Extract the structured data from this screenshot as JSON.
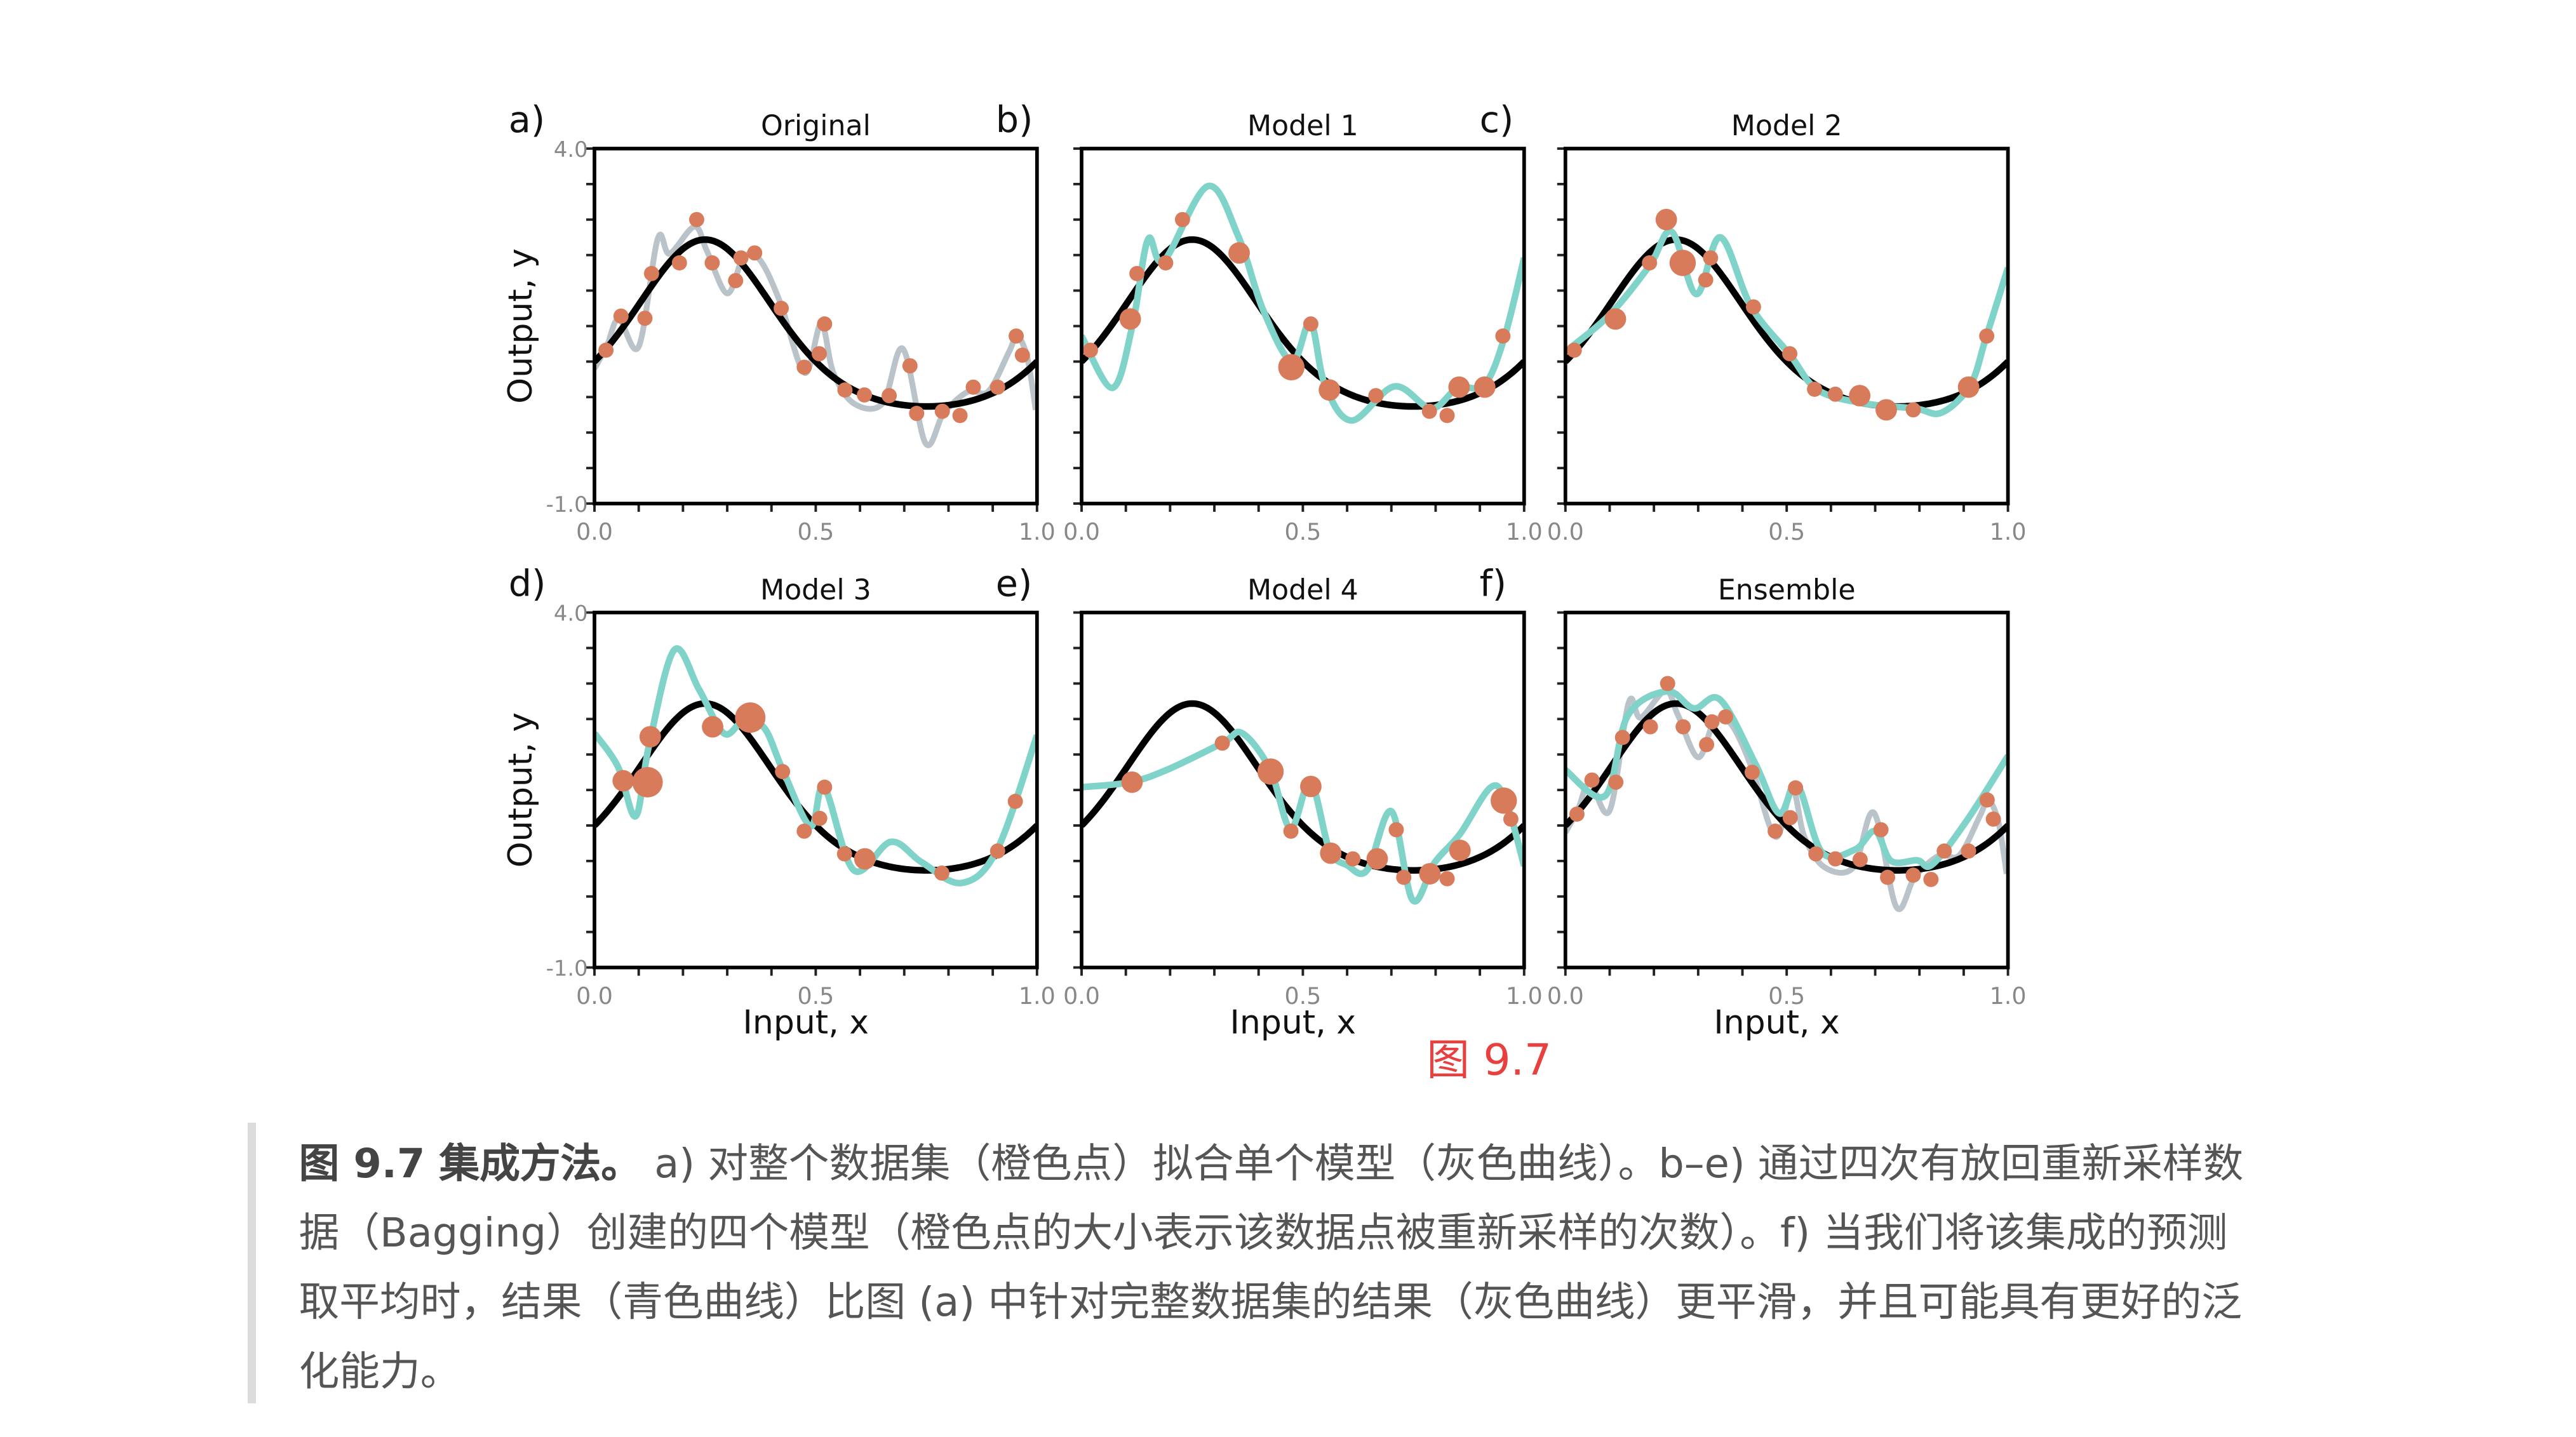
{
  "figure_label": "图 9.7",
  "caption": {
    "bold": "图 9.7 集成方法。",
    "lines": [
      " a) 对整个数据集（橙色点）拟合单个模型（灰色曲线）。b–e) 通过四次有放回重新采样数",
      "据（Bagging）创建的四个模型（橙色点的大小表示该数据点被重新采样的次数）。f) 当我们将该集成的预测",
      "取平均时，结果（青色曲线）比图 (a) 中针对完整数据集的结果（灰色曲线）更平滑，并且可能具有更好的泛",
      "化能力。"
    ]
  },
  "colors": {
    "truth": "#000000",
    "original_fit": "#b9c3c9",
    "model_fit": "#7fd3c8",
    "points": "#d77b5b",
    "axis_ticks": "#888888"
  },
  "chart_data": {
    "type": "scatter",
    "xlabel": "Input, x",
    "ylabel": "Output, y",
    "xlim": [
      0.0,
      1.0
    ],
    "ylim": [
      -1.0,
      4.0
    ],
    "xticks": [
      "0.0",
      "0.5",
      "1.0"
    ],
    "yticks": [
      "4.0",
      "-1.0"
    ],
    "true_function": "exp(sin(2πx))",
    "original_points": [
      [
        0.026,
        1.16
      ],
      [
        0.06,
        1.64
      ],
      [
        0.114,
        1.61
      ],
      [
        0.129,
        2.24
      ],
      [
        0.192,
        2.39
      ],
      [
        0.231,
        3.0
      ],
      [
        0.266,
        2.39
      ],
      [
        0.319,
        2.14
      ],
      [
        0.331,
        2.46
      ],
      [
        0.362,
        2.53
      ],
      [
        0.422,
        1.75
      ],
      [
        0.474,
        0.92
      ],
      [
        0.508,
        1.11
      ],
      [
        0.52,
        1.53
      ],
      [
        0.566,
        0.6
      ],
      [
        0.61,
        0.53
      ],
      [
        0.666,
        0.52
      ],
      [
        0.713,
        0.94
      ],
      [
        0.728,
        0.27
      ],
      [
        0.786,
        0.3
      ],
      [
        0.826,
        0.24
      ],
      [
        0.856,
        0.64
      ],
      [
        0.911,
        0.64
      ],
      [
        0.953,
        1.36
      ],
      [
        0.967,
        1.09
      ]
    ],
    "original_fit": [
      [
        0,
        0.9
      ],
      [
        0.028,
        1.22
      ],
      [
        0.055,
        1.6
      ],
      [
        0.1,
        1.21
      ],
      [
        0.143,
        2.73
      ],
      [
        0.17,
        2.52
      ],
      [
        0.226,
        2.9
      ],
      [
        0.254,
        2.56
      ],
      [
        0.3,
        1.96
      ],
      [
        0.337,
        2.47
      ],
      [
        0.374,
        2.43
      ],
      [
        0.42,
        1.83
      ],
      [
        0.475,
        0.84
      ],
      [
        0.512,
        1.53
      ],
      [
        0.54,
        0.84
      ],
      [
        0.586,
        0.41
      ],
      [
        0.651,
        0.41
      ],
      [
        0.697,
        1.18
      ],
      [
        0.748,
        -0.15
      ],
      [
        0.79,
        0.28
      ],
      [
        0.845,
        0.58
      ],
      [
        0.89,
        0.58
      ],
      [
        0.937,
        1.14
      ],
      [
        0.955,
        1.36
      ],
      [
        0.978,
        1.06
      ],
      [
        0.997,
        0.32
      ]
    ],
    "panels": [
      {
        "letter": "a)",
        "title": "Original",
        "row": 0,
        "col": 0,
        "show_original_fit": true,
        "points": "original",
        "fit": null
      },
      {
        "letter": "b)",
        "title": "Model 1",
        "row": 0,
        "col": 1,
        "show_original_fit": false,
        "points": [
          [
            0.02,
            1.16,
            1
          ],
          [
            0.11,
            1.6,
            2
          ],
          [
            0.125,
            2.24,
            1
          ],
          [
            0.19,
            2.39,
            1
          ],
          [
            0.228,
            3.0,
            1
          ],
          [
            0.356,
            2.53,
            2
          ],
          [
            0.474,
            0.92,
            3
          ],
          [
            0.518,
            1.53,
            1
          ],
          [
            0.56,
            0.6,
            2
          ],
          [
            0.665,
            0.52,
            1
          ],
          [
            0.786,
            0.3,
            1
          ],
          [
            0.826,
            0.24,
            1
          ],
          [
            0.853,
            0.64,
            2
          ],
          [
            0.911,
            0.64,
            2
          ],
          [
            0.952,
            1.36,
            1
          ]
        ],
        "fit": [
          [
            0,
            1.36
          ],
          [
            0.07,
            0.63
          ],
          [
            0.115,
            1.51
          ],
          [
            0.15,
            2.72
          ],
          [
            0.186,
            2.42
          ],
          [
            0.285,
            3.47
          ],
          [
            0.355,
            2.75
          ],
          [
            0.41,
            1.73
          ],
          [
            0.475,
            1.0
          ],
          [
            0.517,
            1.55
          ],
          [
            0.55,
            0.67
          ],
          [
            0.61,
            0.17
          ],
          [
            0.707,
            0.65
          ],
          [
            0.79,
            0.34
          ],
          [
            0.85,
            0.63
          ],
          [
            0.91,
            0.67
          ],
          [
            0.955,
            1.33
          ],
          [
            1.0,
            2.46
          ]
        ]
      },
      {
        "letter": "c)",
        "title": "Model 2",
        "row": 0,
        "col": 2,
        "show_original_fit": false,
        "points": [
          [
            0.02,
            1.16,
            1
          ],
          [
            0.113,
            1.6,
            2
          ],
          [
            0.19,
            2.39,
            1
          ],
          [
            0.228,
            3.0,
            2
          ],
          [
            0.265,
            2.39,
            3
          ],
          [
            0.317,
            2.15,
            1
          ],
          [
            0.328,
            2.46,
            1
          ],
          [
            0.425,
            1.77,
            1
          ],
          [
            0.507,
            1.11,
            1
          ],
          [
            0.563,
            0.61,
            1
          ],
          [
            0.61,
            0.54,
            1
          ],
          [
            0.665,
            0.52,
            2
          ],
          [
            0.725,
            0.32,
            2
          ],
          [
            0.786,
            0.32,
            1
          ],
          [
            0.911,
            0.64,
            2
          ],
          [
            0.952,
            1.36,
            1
          ]
        ],
        "fit": [
          [
            0,
            1.14
          ],
          [
            0.1,
            1.66
          ],
          [
            0.19,
            2.35
          ],
          [
            0.24,
            2.83
          ],
          [
            0.296,
            1.95
          ],
          [
            0.35,
            2.75
          ],
          [
            0.42,
            1.77
          ],
          [
            0.507,
            1.1
          ],
          [
            0.57,
            0.6
          ],
          [
            0.676,
            0.41
          ],
          [
            0.79,
            0.34
          ],
          [
            0.85,
            0.28
          ],
          [
            0.915,
            0.67
          ],
          [
            0.95,
            1.33
          ],
          [
            1.0,
            2.32
          ]
        ]
      },
      {
        "letter": "d)",
        "title": "Model 3",
        "row": 1,
        "col": 0,
        "show_original_fit": false,
        "points": [
          [
            0.065,
            1.63,
            2
          ],
          [
            0.12,
            1.61,
            4
          ],
          [
            0.126,
            2.25,
            2
          ],
          [
            0.267,
            2.39,
            2
          ],
          [
            0.352,
            2.52,
            4
          ],
          [
            0.425,
            1.76,
            1
          ],
          [
            0.474,
            0.92,
            1
          ],
          [
            0.509,
            1.1,
            1
          ],
          [
            0.52,
            1.54,
            1
          ],
          [
            0.565,
            0.6,
            1
          ],
          [
            0.611,
            0.53,
            2
          ],
          [
            0.785,
            0.33,
            1
          ],
          [
            0.911,
            0.64,
            1
          ],
          [
            0.951,
            1.34,
            1
          ]
        ],
        "fit": [
          [
            0,
            2.3
          ],
          [
            0.053,
            1.83
          ],
          [
            0.093,
            1.13
          ],
          [
            0.123,
            2.12
          ],
          [
            0.18,
            3.47
          ],
          [
            0.236,
            2.92
          ],
          [
            0.292,
            2.3
          ],
          [
            0.334,
            2.45
          ],
          [
            0.383,
            2.38
          ],
          [
            0.425,
            1.79
          ],
          [
            0.488,
            0.99
          ],
          [
            0.519,
            1.54
          ],
          [
            0.586,
            0.37
          ],
          [
            0.67,
            0.77
          ],
          [
            0.74,
            0.48
          ],
          [
            0.83,
            0.19
          ],
          [
            0.91,
            0.66
          ],
          [
            1.0,
            2.27
          ]
        ]
      },
      {
        "letter": "e)",
        "title": "Model 4",
        "row": 1,
        "col": 1,
        "show_original_fit": false,
        "points": [
          [
            0.114,
            1.61,
            2
          ],
          [
            0.318,
            2.16,
            1
          ],
          [
            0.427,
            1.76,
            3
          ],
          [
            0.518,
            1.55,
            2
          ],
          [
            0.473,
            0.92,
            1
          ],
          [
            0.563,
            0.61,
            2
          ],
          [
            0.613,
            0.53,
            1
          ],
          [
            0.668,
            0.53,
            2
          ],
          [
            0.711,
            0.94,
            1
          ],
          [
            0.728,
            0.27,
            1
          ],
          [
            0.787,
            0.32,
            2
          ],
          [
            0.826,
            0.25,
            1
          ],
          [
            0.855,
            0.65,
            2
          ],
          [
            0.954,
            1.35,
            3
          ],
          [
            0.97,
            1.09,
            1
          ]
        ],
        "fit": [
          [
            0,
            1.54
          ],
          [
            0.11,
            1.61
          ],
          [
            0.195,
            1.79
          ],
          [
            0.318,
            2.16
          ],
          [
            0.363,
            2.3
          ],
          [
            0.426,
            1.79
          ],
          [
            0.472,
            0.96
          ],
          [
            0.517,
            1.61
          ],
          [
            0.56,
            0.66
          ],
          [
            0.6,
            0.44
          ],
          [
            0.645,
            0.37
          ],
          [
            0.7,
            1.2
          ],
          [
            0.748,
            -0.05
          ],
          [
            0.798,
            0.48
          ],
          [
            0.855,
            0.88
          ],
          [
            0.925,
            1.54
          ],
          [
            0.96,
            1.32
          ],
          [
            1.0,
            0.43
          ]
        ]
      },
      {
        "letter": "f)",
        "title": "Ensemble",
        "row": 1,
        "col": 2,
        "show_original_fit": true,
        "points": "original",
        "fit": [
          [
            0,
            1.78
          ],
          [
            0.09,
            1.42
          ],
          [
            0.141,
            2.55
          ],
          [
            0.23,
            2.89
          ],
          [
            0.29,
            2.65
          ],
          [
            0.35,
            2.77
          ],
          [
            0.43,
            1.86
          ],
          [
            0.483,
            1.17
          ],
          [
            0.524,
            1.57
          ],
          [
            0.58,
            0.62
          ],
          [
            0.654,
            0.66
          ],
          [
            0.7,
            0.92
          ],
          [
            0.736,
            0.5
          ],
          [
            0.795,
            0.51
          ],
          [
            0.829,
            0.45
          ],
          [
            0.907,
            1.07
          ],
          [
            1.0,
            1.98
          ]
        ]
      }
    ]
  }
}
